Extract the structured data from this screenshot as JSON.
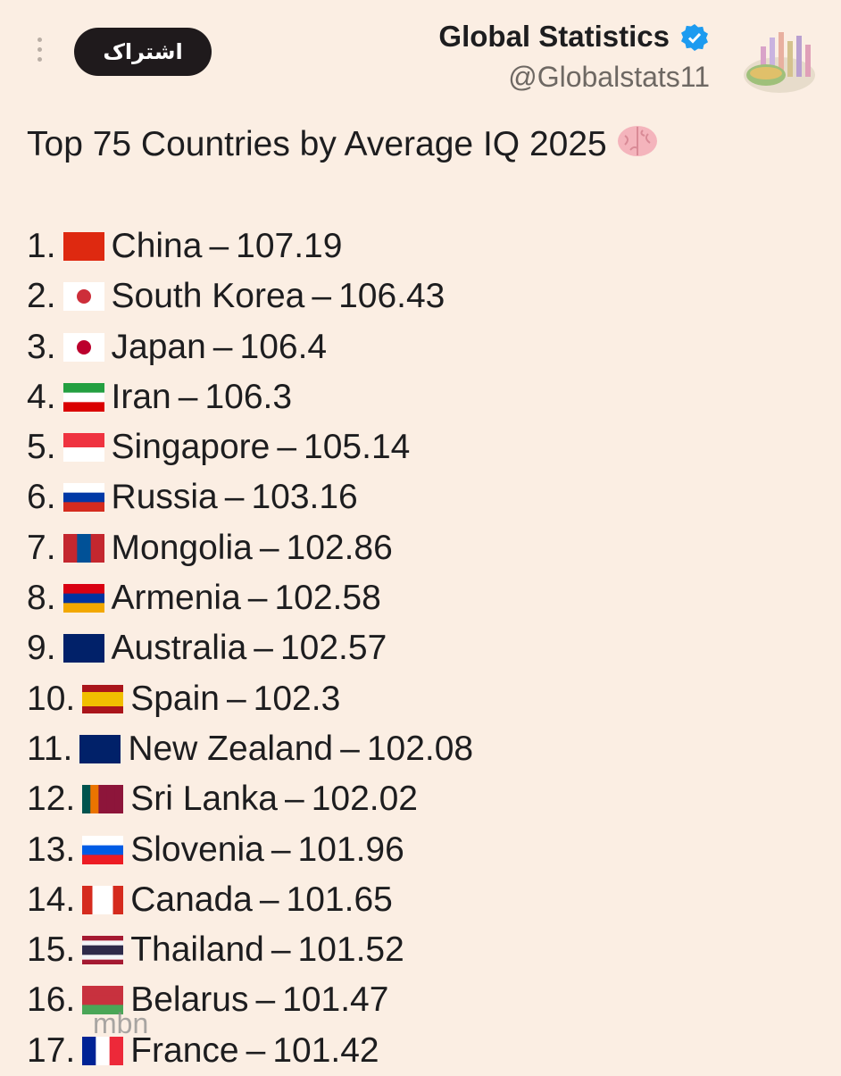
{
  "header": {
    "name": "Global Statistics",
    "handle": "@Globalstats11",
    "subscribe_button": "اشتراک"
  },
  "tweet": {
    "title": "Top 75 Countries by Average IQ 2025",
    "separator": "–",
    "items": [
      {
        "rank": "1.",
        "country": "China",
        "value": 107.19
      },
      {
        "rank": "2.",
        "country": "South Korea",
        "value": 106.43
      },
      {
        "rank": "3.",
        "country": "Japan",
        "value": 106.4
      },
      {
        "rank": "4.",
        "country": "Iran",
        "value": 106.3
      },
      {
        "rank": "5.",
        "country": "Singapore",
        "value": 105.14
      },
      {
        "rank": "6.",
        "country": "Russia",
        "value": 103.16
      },
      {
        "rank": "7.",
        "country": "Mongolia",
        "value": 102.86
      },
      {
        "rank": "8.",
        "country": "Armenia",
        "value": 102.58
      },
      {
        "rank": "9.",
        "country": "Australia",
        "value": 102.57
      },
      {
        "rank": "10.",
        "country": "Spain",
        "value": 102.3
      },
      {
        "rank": "11.",
        "country": "New Zealand",
        "value": 102.08
      },
      {
        "rank": "12.",
        "country": "Sri Lanka",
        "value": 102.02
      },
      {
        "rank": "13.",
        "country": "Slovenia",
        "value": 101.96
      },
      {
        "rank": "14.",
        "country": "Canada",
        "value": 101.65
      },
      {
        "rank": "15.",
        "country": "Thailand",
        "value": 101.52
      },
      {
        "rank": "16.",
        "country": "Belarus",
        "value": 101.47
      },
      {
        "rank": "17.",
        "country": "France",
        "value": 101.42
      }
    ]
  },
  "watermark": "mbn"
}
